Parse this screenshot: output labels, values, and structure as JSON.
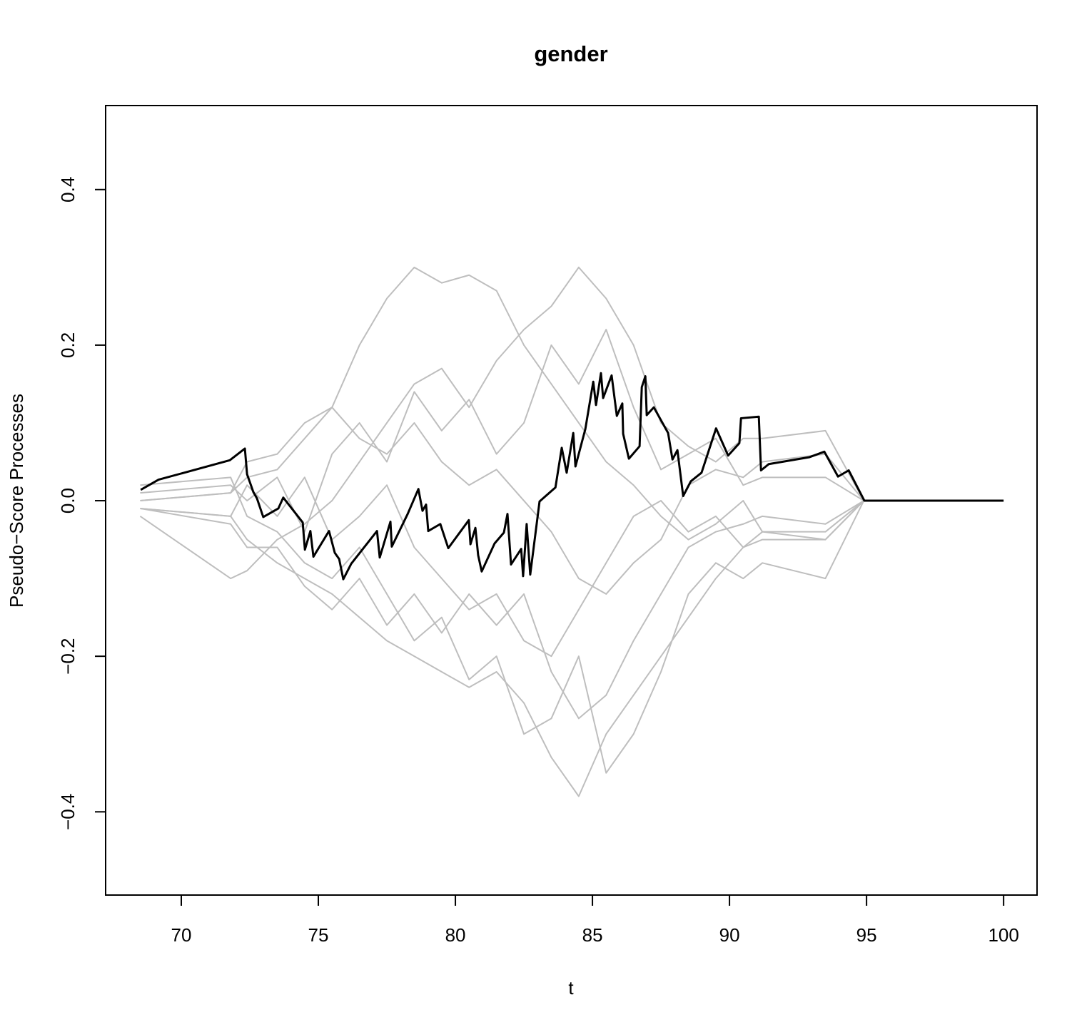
{
  "chart_data": {
    "type": "line",
    "title": "gender",
    "xlabel": "t",
    "ylabel": "Pseudo−Score Processes",
    "xlim": [
      67.24,
      101.22
    ],
    "ylim": [
      -0.507,
      0.508
    ],
    "xticks": [
      70,
      75,
      80,
      85,
      90,
      95,
      100
    ],
    "yticks": [
      {
        "value": -0.4,
        "label": "−0.4"
      },
      {
        "value": -0.2,
        "label": "−0.2"
      },
      {
        "value": 0,
        "label": "0.0"
      },
      0.2,
      0.4
    ],
    "grid": false,
    "series": [
      {
        "color": "#bebebe",
        "x": [
          68.5,
          71.8,
          72.4,
          73.5,
          74.5,
          75.5,
          76.5,
          77.5,
          78.5,
          79.5,
          80.5,
          81.5,
          82.5,
          83.5,
          84.5,
          85.5,
          86.5,
          87.5,
          88.5,
          89.5,
          90.5,
          91.2,
          93.5,
          94.9
        ],
        "values": [
          0,
          0.01,
          0.03,
          0.04,
          0.08,
          0.12,
          0.2,
          0.26,
          0.3,
          0.28,
          0.29,
          0.27,
          0.2,
          0.15,
          0.1,
          0.05,
          0.02,
          -0.02,
          -0.05,
          -0.03,
          0.0,
          -0.04,
          -0.04,
          0
        ]
      },
      {
        "color": "#bebebe",
        "x": [
          68.5,
          71.8,
          72.4,
          73.5,
          74.5,
          75.5,
          76.5,
          77.5,
          78.5,
          79.5,
          80.5,
          81.5,
          82.5,
          83.5,
          84.5,
          85.5,
          86.5,
          87.5,
          88.5,
          89.5,
          90.5,
          91.2,
          93.5,
          94.9
        ],
        "values": [
          -0.01,
          -0.02,
          -0.05,
          -0.08,
          -0.1,
          -0.12,
          -0.15,
          -0.18,
          -0.2,
          -0.22,
          -0.24,
          -0.22,
          -0.26,
          -0.33,
          -0.38,
          -0.3,
          -0.25,
          -0.2,
          -0.15,
          -0.1,
          -0.06,
          -0.05,
          -0.05,
          0
        ]
      },
      {
        "color": "#bebebe",
        "x": [
          68.5,
          71.8,
          72.4,
          73.5,
          74.5,
          75.5,
          76.5,
          77.5,
          78.5,
          79.5,
          80.5,
          81.5,
          82.5,
          83.5,
          84.5,
          85.5,
          86.5,
          87.5,
          88.5,
          89.5,
          90.5,
          91.2,
          93.5,
          94.9
        ],
        "values": [
          -0.02,
          -0.1,
          -0.09,
          -0.05,
          -0.03,
          0.0,
          0.05,
          0.1,
          0.15,
          0.17,
          0.12,
          0.18,
          0.22,
          0.25,
          0.3,
          0.26,
          0.2,
          0.1,
          0.07,
          0.05,
          0.08,
          0.08,
          0.09,
          0
        ]
      },
      {
        "color": "#bebebe",
        "x": [
          68.5,
          71.8,
          72.4,
          73.5,
          74.5,
          75.5,
          76.5,
          77.5,
          78.5,
          79.5,
          80.5,
          81.5,
          82.5,
          83.5,
          84.5,
          85.5,
          86.5,
          87.5,
          88.5,
          89.5,
          90.5,
          91.2,
          93.5,
          94.9
        ],
        "values": [
          0.02,
          0.03,
          -0.02,
          -0.04,
          -0.08,
          -0.1,
          -0.06,
          -0.12,
          -0.18,
          -0.15,
          -0.23,
          -0.2,
          -0.3,
          -0.28,
          -0.2,
          -0.35,
          -0.3,
          -0.22,
          -0.12,
          -0.08,
          -0.1,
          -0.08,
          -0.1,
          0
        ]
      },
      {
        "color": "#bebebe",
        "x": [
          68.5,
          71.8,
          72.4,
          73.5,
          74.5,
          75.5,
          76.5,
          77.5,
          78.5,
          79.5,
          80.5,
          81.5,
          82.5,
          83.5,
          84.5,
          85.5,
          86.5,
          87.5,
          88.5,
          89.5,
          90.5,
          91.2,
          93.5,
          94.9
        ],
        "values": [
          0,
          0.01,
          0.05,
          0.06,
          0.1,
          0.12,
          0.08,
          0.06,
          0.1,
          0.05,
          0.02,
          0.04,
          0.0,
          -0.04,
          -0.1,
          -0.12,
          -0.08,
          -0.05,
          0.02,
          0.04,
          0.03,
          0.05,
          0.06,
          0
        ]
      },
      {
        "color": "#bebebe",
        "x": [
          68.5,
          71.8,
          72.4,
          73.5,
          74.5,
          75.5,
          76.5,
          77.5,
          78.5,
          79.5,
          80.5,
          81.5,
          82.5,
          83.5,
          84.5,
          85.5,
          86.5,
          87.5,
          88.5,
          89.5,
          90.5,
          91.2,
          93.5,
          94.9
        ],
        "values": [
          -0.01,
          -0.02,
          0.02,
          -0.02,
          0.03,
          -0.05,
          -0.02,
          0.02,
          -0.06,
          -0.1,
          -0.14,
          -0.12,
          -0.18,
          -0.2,
          -0.14,
          -0.08,
          -0.02,
          0.0,
          -0.04,
          -0.02,
          -0.06,
          -0.04,
          -0.05,
          0
        ]
      },
      {
        "color": "#bebebe",
        "x": [
          68.5,
          71.8,
          72.4,
          73.5,
          74.5,
          75.5,
          76.5,
          77.5,
          78.5,
          79.5,
          80.5,
          81.5,
          82.5,
          83.5,
          84.5,
          85.5,
          86.5,
          87.5,
          88.5,
          89.5,
          90.5,
          91.2,
          93.5,
          94.9
        ],
        "values": [
          0.01,
          0.02,
          0.0,
          0.03,
          -0.04,
          0.06,
          0.1,
          0.05,
          0.14,
          0.09,
          0.13,
          0.06,
          0.1,
          0.2,
          0.15,
          0.22,
          0.12,
          0.04,
          0.06,
          0.08,
          0.02,
          0.03,
          0.03,
          0
        ]
      },
      {
        "color": "#bebebe",
        "x": [
          68.5,
          71.8,
          72.4,
          73.5,
          74.5,
          75.5,
          76.5,
          77.5,
          78.5,
          79.5,
          80.5,
          81.5,
          82.5,
          83.5,
          84.5,
          85.5,
          86.5,
          87.5,
          88.5,
          89.5,
          90.5,
          91.2,
          93.5,
          94.9
        ],
        "values": [
          -0.01,
          -0.03,
          -0.06,
          -0.06,
          -0.11,
          -0.14,
          -0.1,
          -0.16,
          -0.12,
          -0.17,
          -0.12,
          -0.16,
          -0.12,
          -0.22,
          -0.28,
          -0.25,
          -0.18,
          -0.12,
          -0.06,
          -0.04,
          -0.03,
          -0.02,
          -0.03,
          0
        ]
      },
      {
        "color": "#000000",
        "x": [
          68.52,
          69.17,
          71.77,
          72.32,
          72.4,
          72.63,
          72.76,
          72.99,
          73.54,
          73.72,
          74.43,
          74.51,
          74.71,
          74.82,
          75.39,
          75.6,
          75.76,
          75.91,
          76.2,
          77.14,
          77.24,
          77.63,
          77.68,
          78.26,
          78.65,
          78.8,
          78.93,
          79.01,
          79.45,
          79.74,
          80.49,
          80.55,
          80.73,
          80.83,
          80.96,
          81.43,
          81.77,
          81.9,
          82.03,
          82.4,
          82.47,
          82.6,
          82.73,
          83.07,
          83.65,
          83.88,
          84.06,
          84.3,
          84.38,
          84.74,
          85.03,
          85.13,
          85.31,
          85.39,
          85.7,
          85.89,
          86.09,
          86.12,
          86.33,
          86.72,
          86.8,
          86.93,
          86.98,
          87.24,
          87.76,
          87.92,
          88.1,
          88.31,
          88.59,
          88.98,
          89.51,
          89.95,
          90.36,
          90.42,
          91.07,
          91.15,
          91.43,
          92.92,
          93.46,
          93.96,
          94.35,
          94.92,
          100
        ],
        "values": [
          0.014,
          0.027,
          0.052,
          0.067,
          0.034,
          0.011,
          0.003,
          -0.021,
          -0.01,
          0.004,
          -0.028,
          -0.063,
          -0.039,
          -0.072,
          -0.039,
          -0.067,
          -0.075,
          -0.101,
          -0.081,
          -0.039,
          -0.073,
          -0.027,
          -0.059,
          -0.017,
          0.015,
          -0.013,
          -0.005,
          -0.039,
          -0.03,
          -0.061,
          -0.025,
          -0.056,
          -0.035,
          -0.07,
          -0.091,
          -0.055,
          -0.041,
          -0.017,
          -0.082,
          -0.062,
          -0.097,
          -0.03,
          -0.095,
          -0.001,
          0.017,
          0.068,
          0.036,
          0.087,
          0.044,
          0.092,
          0.153,
          0.123,
          0.164,
          0.132,
          0.161,
          0.109,
          0.125,
          0.086,
          0.054,
          0.07,
          0.146,
          0.16,
          0.11,
          0.12,
          0.087,
          0.053,
          0.065,
          0.006,
          0.025,
          0.036,
          0.093,
          0.058,
          0.074,
          0.106,
          0.108,
          0.039,
          0.047,
          0.056,
          0.063,
          0.031,
          0.039,
          0,
          0
        ]
      }
    ]
  }
}
